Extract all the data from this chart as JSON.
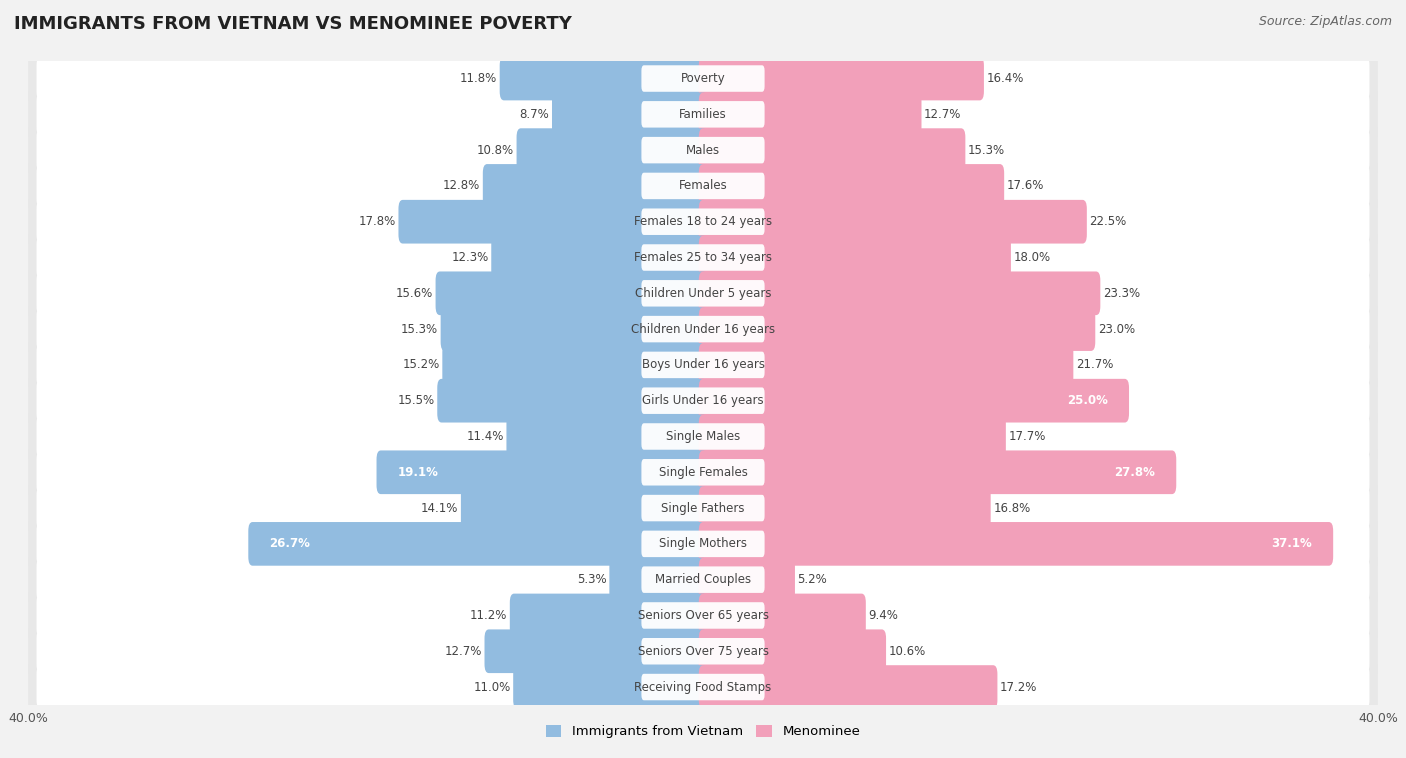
{
  "title": "IMMIGRANTS FROM VIETNAM VS MENOMINEE POVERTY",
  "source": "Source: ZipAtlas.com",
  "categories": [
    "Poverty",
    "Families",
    "Males",
    "Females",
    "Females 18 to 24 years",
    "Females 25 to 34 years",
    "Children Under 5 years",
    "Children Under 16 years",
    "Boys Under 16 years",
    "Girls Under 16 years",
    "Single Males",
    "Single Females",
    "Single Fathers",
    "Single Mothers",
    "Married Couples",
    "Seniors Over 65 years",
    "Seniors Over 75 years",
    "Receiving Food Stamps"
  ],
  "vietnam_values": [
    11.8,
    8.7,
    10.8,
    12.8,
    17.8,
    12.3,
    15.6,
    15.3,
    15.2,
    15.5,
    11.4,
    19.1,
    14.1,
    26.7,
    5.3,
    11.2,
    12.7,
    11.0
  ],
  "menominee_values": [
    16.4,
    12.7,
    15.3,
    17.6,
    22.5,
    18.0,
    23.3,
    23.0,
    21.7,
    25.0,
    17.7,
    27.8,
    16.8,
    37.1,
    5.2,
    9.4,
    10.6,
    17.2
  ],
  "vietnam_color": "#92bce0",
  "menominee_color": "#f2a0ba",
  "vietnam_label": "Immigrants from Vietnam",
  "menominee_label": "Menominee",
  "xlim": 40.0,
  "background_color": "#f2f2f2",
  "row_color": "#e8e8e8",
  "bar_bg_color": "#ffffff",
  "title_fontsize": 13,
  "source_fontsize": 9,
  "label_fontsize": 8.5,
  "value_fontsize": 8.5
}
